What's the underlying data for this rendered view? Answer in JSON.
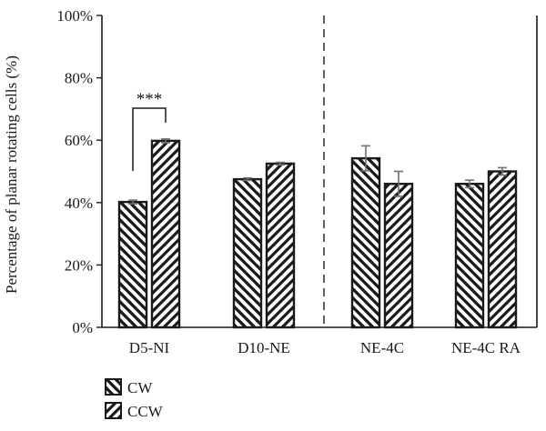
{
  "chart_data": {
    "type": "bar",
    "categories": [
      "D5-NI",
      "D10-NE",
      "NE-4C",
      "NE-4C RA"
    ],
    "series": [
      {
        "name": "CW",
        "pattern": "backslash-hatch",
        "values": [
          40.2,
          47.5,
          54.2,
          46.0
        ],
        "errors": [
          0.6,
          0.4,
          4.0,
          1.2
        ]
      },
      {
        "name": "CCW",
        "pattern": "slash-hatch",
        "values": [
          59.8,
          52.5,
          46.0,
          50.0
        ],
        "errors": [
          0.6,
          0.4,
          4.0,
          1.2
        ]
      }
    ],
    "ylabel": "Percentage of planar rotating cells (%)",
    "xlabel": "",
    "ylim": [
      0,
      100
    ],
    "yticks": [
      "0%",
      "20%",
      "40%",
      "60%",
      "80%",
      "100%"
    ],
    "ytick_values": [
      0,
      20,
      40,
      60,
      80,
      100
    ],
    "grid": false,
    "legend_position": "bottom-left",
    "significance": {
      "label": "***",
      "category_index": 0
    },
    "separator_after_category_index": 1,
    "colors": {
      "bar_fill": "#ffffff",
      "hatch": "#1a1a1a",
      "error_bar": "#707070",
      "axis": "#1a1a1a"
    }
  }
}
